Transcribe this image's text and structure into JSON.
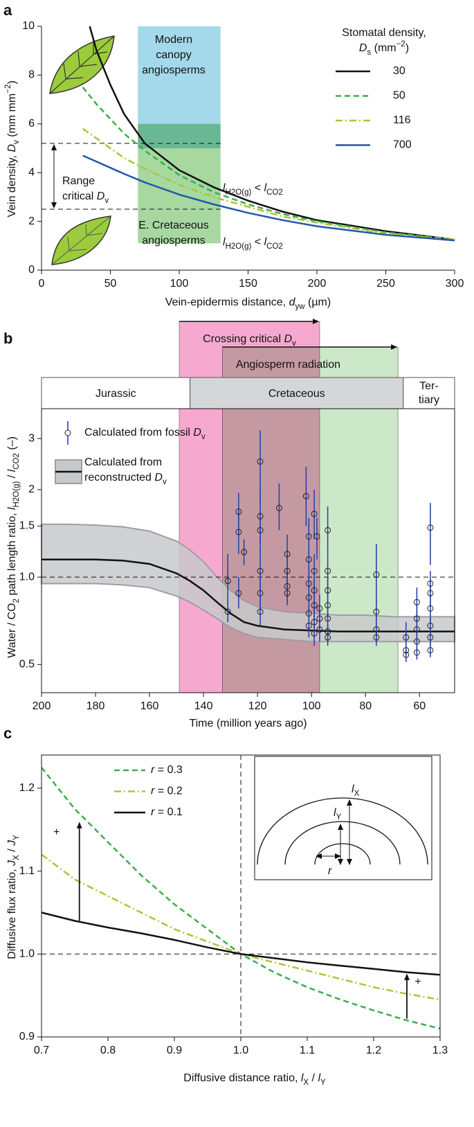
{
  "chart_data": [
    {
      "type": "line",
      "panel_label": "a",
      "xlabel": [
        "Vein-epidermis distance, ",
        "d",
        "yw",
        " (µm)"
      ],
      "ylabel": [
        "Vein density, ",
        "D",
        "v",
        " (mm mm",
        "−2",
        ")"
      ],
      "xlim": [
        0,
        300
      ],
      "xticks": [
        0,
        50,
        100,
        150,
        200,
        250,
        300
      ],
      "ylim": [
        0,
        10
      ],
      "yticks": [
        0,
        2,
        4,
        6,
        8,
        10
      ],
      "legend_title": [
        "Stomatal density,",
        "D",
        "s",
        " (mm",
        "−2",
        ")"
      ],
      "series": [
        {
          "name": "30",
          "color": "#111111",
          "dash": "solid",
          "x": [
            35,
            40,
            50,
            60,
            75,
            100,
            125,
            150,
            175,
            200,
            250,
            300
          ],
          "values": [
            10,
            9.0,
            7.6,
            6.4,
            5.2,
            4.1,
            3.4,
            2.85,
            2.4,
            2.05,
            1.6,
            1.25
          ]
        },
        {
          "name": "50",
          "color": "#3aae49",
          "dash": "dashed",
          "x": [
            30,
            40,
            50,
            60,
            75,
            100,
            125,
            150,
            175,
            200,
            250,
            300
          ],
          "values": [
            7.5,
            6.8,
            6.2,
            5.6,
            4.9,
            3.9,
            3.2,
            2.7,
            2.3,
            2.0,
            1.55,
            1.25
          ]
        },
        {
          "name": "116",
          "color": "#a9c63b",
          "dash": "dashdot",
          "x": [
            30,
            40,
            50,
            60,
            75,
            100,
            125,
            150,
            175,
            200,
            250,
            300
          ],
          "values": [
            5.8,
            5.4,
            5.0,
            4.6,
            4.15,
            3.5,
            3.0,
            2.6,
            2.2,
            1.95,
            1.5,
            1.25
          ]
        },
        {
          "name": "700",
          "color": "#2257a6",
          "dash": "solid",
          "x": [
            30,
            40,
            50,
            60,
            75,
            100,
            125,
            150,
            175,
            200,
            250,
            300
          ],
          "values": [
            4.7,
            4.45,
            4.2,
            3.95,
            3.6,
            3.1,
            2.7,
            2.35,
            2.05,
            1.8,
            1.45,
            1.22
          ]
        }
      ],
      "regions": [
        {
          "label": [
            "Modern",
            "canopy",
            "angiosperms"
          ],
          "color": "#a3d9ea",
          "xlim": [
            70,
            130
          ],
          "ylim": [
            5,
            10
          ]
        },
        {
          "label": [
            "E. Cretaceous",
            "angiosperms"
          ],
          "color": "#a6d8a0",
          "xlim": [
            70,
            130
          ],
          "ylim": [
            1.1,
            6
          ]
        }
      ],
      "hlines": [
        {
          "y": 5.2,
          "xlim": [
            0,
            130
          ]
        },
        {
          "y": 2.5,
          "xlim": [
            0,
            130
          ]
        }
      ],
      "range_label": [
        "Range",
        "critical ",
        "D",
        "v"
      ],
      "annotations": [
        [
          "l",
          "H2O(g)",
          " < ",
          "l",
          "CO2"
        ],
        [
          "l",
          "H2O(g)",
          " < ",
          "l",
          "CO2"
        ]
      ]
    },
    {
      "type": "scatter",
      "panel_label": "b",
      "xlabel": "Time (million years ago)",
      "ylabel": [
        "Water / CO",
        "2",
        " path length ratio, ",
        "l",
        "H2O(g)",
        " / ",
        "l",
        "CO2",
        " (–)"
      ],
      "xlim": [
        200,
        47
      ],
      "xticks": [
        200,
        180,
        160,
        140,
        120,
        100,
        80,
        60
      ],
      "ylim": [
        0.4,
        3.8
      ],
      "yticks": [
        0.5,
        {
          "value": 1,
          "label": "1.0"
        },
        1.5,
        2,
        3
      ],
      "log_y": true,
      "hline": 1,
      "periods": [
        {
          "label": [
            "Jurassic"
          ],
          "xlim": [
            200,
            145
          ],
          "color": "#ffffff"
        },
        {
          "label": [
            "Cretaceous"
          ],
          "xlim": [
            145,
            66
          ],
          "color": "#d5d6d8"
        },
        {
          "label": [
            "Ter-",
            "tiary"
          ],
          "xlim": [
            66,
            47
          ],
          "color": "#ffffff"
        }
      ],
      "intervals": [
        {
          "label": [
            "Crossing critical ",
            "D",
            "v"
          ],
          "xlim": [
            149,
            97
          ],
          "color": "#f6a8cf"
        },
        {
          "label": [
            "Angiosperm radiation"
          ],
          "xlim": [
            133,
            68
          ],
          "color": "#cde8c8"
        }
      ],
      "series": [
        {
          "name": [
            "Calculated from fossil ",
            "D",
            "v"
          ],
          "color": "#2a45a8",
          "x": [
            131,
            131,
            127,
            127,
            127,
            125,
            119,
            119,
            119,
            119,
            119,
            119,
            112,
            109,
            109,
            109,
            109,
            102,
            101,
            101,
            101,
            101,
            101,
            101,
            99,
            99,
            99,
            99,
            99,
            99,
            98,
            97,
            97,
            97,
            94,
            94,
            94,
            94,
            94,
            94,
            94,
            76,
            76,
            76,
            76,
            65,
            65,
            65,
            61,
            61,
            61,
            61,
            61,
            56,
            56,
            56,
            56,
            56,
            56,
            56
          ],
          "values": [
            0.97,
            0.76,
            1.68,
            1.43,
            0.88,
            1.22,
            2.5,
            1.62,
            1.45,
            1.05,
            0.88,
            0.76,
            1.73,
            1.2,
            1.05,
            0.93,
            0.88,
            1.9,
            1.38,
            1.15,
            0.95,
            0.85,
            0.75,
            0.68,
            1.65,
            1.05,
            0.9,
            0.8,
            0.7,
            0.64,
            1.38,
            0.78,
            0.72,
            0.66,
            1.45,
            1.05,
            0.9,
            0.8,
            0.72,
            0.65,
            0.62,
            1.02,
            0.76,
            0.66,
            0.62,
            0.62,
            0.56,
            0.54,
            0.82,
            0.72,
            0.66,
            0.6,
            0.55,
            1.48,
            0.95,
            0.88,
            0.78,
            0.68,
            0.62,
            0.56
          ],
          "lower": [
            0.8,
            0.7,
            1.4,
            1.2,
            0.78,
            1.1,
            1.8,
            1.3,
            1.2,
            0.9,
            0.78,
            0.68,
            1.45,
            1.0,
            0.92,
            0.82,
            0.8,
            1.5,
            1.2,
            1.0,
            0.85,
            0.75,
            0.68,
            0.62,
            1.35,
            0.9,
            0.8,
            0.72,
            0.64,
            0.58,
            1.15,
            0.7,
            0.66,
            0.6,
            1.2,
            0.92,
            0.8,
            0.72,
            0.66,
            0.6,
            0.58,
            0.8,
            0.68,
            0.6,
            0.58,
            0.55,
            0.52,
            0.51,
            0.7,
            0.64,
            0.6,
            0.55,
            0.52,
            1.1,
            0.85,
            0.8,
            0.7,
            0.62,
            0.58,
            0.53
          ],
          "upper": [
            1.2,
            0.85,
            1.95,
            1.7,
            1.0,
            1.35,
            3.2,
            2.0,
            1.7,
            1.25,
            1.0,
            0.85,
            2.1,
            1.4,
            1.2,
            1.05,
            0.98,
            2.4,
            1.6,
            1.3,
            1.1,
            0.95,
            0.82,
            0.75,
            2.0,
            1.2,
            1.0,
            0.9,
            0.78,
            0.7,
            1.6,
            0.87,
            0.8,
            0.72,
            1.75,
            1.2,
            1.0,
            0.9,
            0.8,
            0.7,
            0.67,
            1.3,
            0.85,
            0.73,
            0.66,
            0.7,
            0.6,
            0.57,
            0.92,
            0.8,
            0.72,
            0.65,
            0.58,
            1.8,
            1.05,
            0.96,
            0.85,
            0.74,
            0.66,
            0.6
          ]
        },
        {
          "name": [
            "Calculated from",
            "reconstructed ",
            "D",
            "v"
          ],
          "color": "#111111",
          "band_color": "#c8c9cb",
          "x": [
            200,
            190,
            180,
            170,
            160,
            150,
            145,
            140,
            135,
            130,
            125,
            120,
            110,
            100,
            90,
            80,
            70,
            60,
            47
          ],
          "values": [
            1.15,
            1.15,
            1.15,
            1.14,
            1.11,
            1.03,
            0.97,
            0.9,
            0.82,
            0.75,
            0.7,
            0.68,
            0.66,
            0.655,
            0.65,
            0.65,
            0.65,
            0.65,
            0.65
          ],
          "band_upper": [
            1.52,
            1.52,
            1.51,
            1.49,
            1.44,
            1.33,
            1.24,
            1.13,
            1.0,
            0.9,
            0.83,
            0.79,
            0.76,
            0.75,
            0.74,
            0.74,
            0.73,
            0.73,
            0.73
          ],
          "band_lower": [
            0.95,
            0.95,
            0.95,
            0.94,
            0.92,
            0.86,
            0.82,
            0.77,
            0.72,
            0.67,
            0.64,
            0.62,
            0.61,
            0.6,
            0.6,
            0.6,
            0.6,
            0.6,
            0.6
          ]
        }
      ]
    },
    {
      "type": "line",
      "panel_label": "c",
      "xlabel": [
        "Diffusive distance ratio, ",
        "l",
        "X",
        " / ",
        "l",
        "Y"
      ],
      "ylabel": [
        "Diffusive flux ratio, ",
        "J",
        "X",
        " / ",
        "J",
        "Y"
      ],
      "xlim": [
        0.7,
        1.3
      ],
      "xticks": [
        0.7,
        0.8,
        0.9,
        {
          "value": 1,
          "label": "1.0"
        },
        1.1,
        1.2,
        1.3
      ],
      "ylim": [
        0.9,
        1.24
      ],
      "yticks": [
        0.9,
        {
          "value": 1,
          "label": "1.0"
        },
        1.1,
        1.2
      ],
      "hline": 1,
      "vline": 1,
      "series": [
        {
          "name": [
            "r",
            " = 0.3"
          ],
          "color": "#3aae49",
          "dash": "dashed",
          "x": [
            0.7,
            0.75,
            0.8,
            0.85,
            0.9,
            0.95,
            1.0,
            1.05,
            1.1,
            1.15,
            1.2,
            1.25,
            1.3
          ],
          "values": [
            1.225,
            1.175,
            1.135,
            1.095,
            1.06,
            1.03,
            1.0,
            0.978,
            0.96,
            0.945,
            0.932,
            0.92,
            0.91
          ]
        },
        {
          "name": [
            "r",
            " = 0.2"
          ],
          "color": "#a9c63b",
          "dash": "dashdot",
          "x": [
            0.7,
            0.75,
            0.8,
            0.85,
            0.9,
            0.95,
            1.0,
            1.05,
            1.1,
            1.15,
            1.2,
            1.25,
            1.3
          ],
          "values": [
            1.12,
            1.09,
            1.07,
            1.05,
            1.03,
            1.015,
            1.0,
            0.99,
            0.98,
            0.97,
            0.96,
            0.952,
            0.945
          ]
        },
        {
          "name": [
            "r",
            " = 0.1"
          ],
          "color": "#111111",
          "dash": "solid",
          "x": [
            0.7,
            0.75,
            0.8,
            0.85,
            0.9,
            0.95,
            1.0,
            1.05,
            1.1,
            1.15,
            1.2,
            1.25,
            1.3
          ],
          "values": [
            1.05,
            1.04,
            1.032,
            1.025,
            1.017,
            1.008,
            1.0,
            0.995,
            0.99,
            0.986,
            0.982,
            0.978,
            0.975
          ]
        }
      ],
      "arrows": [
        {
          "x": 0.757,
          "from": 1.04,
          "to": 1.16,
          "label": "+"
        },
        {
          "x": 1.25,
          "from": 0.922,
          "to": 0.977,
          "label": "+"
        }
      ],
      "inset": {
        "lx": [
          "l",
          "X"
        ],
        "ly": [
          "l",
          "Y"
        ],
        "r": "r"
      }
    }
  ]
}
